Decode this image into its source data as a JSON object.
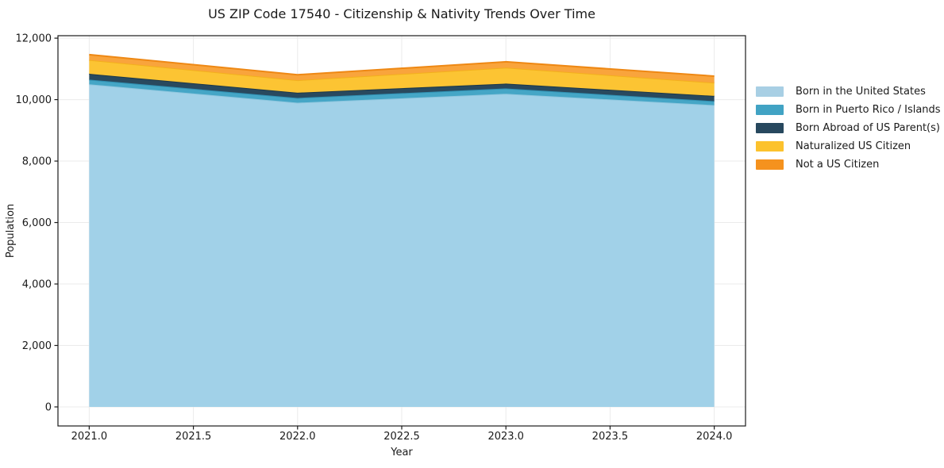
{
  "chart_data": {
    "type": "area",
    "stacked": true,
    "title": "US ZIP Code 17540 - Citizenship & Nativity Trends Over Time",
    "xlabel": "Year",
    "ylabel": "Population",
    "x": [
      2021,
      2022,
      2023,
      2024
    ],
    "series": [
      {
        "name": "Born in the United States",
        "values": [
          10500,
          9900,
          10190,
          9820
        ],
        "color": "#a1d1e8",
        "edge": "#8ec6de",
        "legend_color": "#a8cfe4"
      },
      {
        "name": "Born in Puerto Rico / Islands",
        "values": [
          150,
          155,
          175,
          130
        ],
        "color": "#45a6c6",
        "edge": "#3090b2",
        "legend_color": "#41a3c4"
      },
      {
        "name": "Born Abroad of US Parent(s)",
        "values": [
          190,
          170,
          155,
          170
        ],
        "color": "#29495e",
        "edge": "#1c3849",
        "legend_color": "#27485e"
      },
      {
        "name": "Naturalized US Citizen",
        "values": [
          450,
          405,
          520,
          430
        ],
        "color": "#fcc433",
        "edge": "#f3b01c",
        "legend_color": "#fcc22d"
      },
      {
        "name": "Not a US Citizen",
        "values": [
          175,
          180,
          190,
          215
        ],
        "color": "#f9a43c",
        "edge": "#ee8814",
        "legend_color": "#f5921e"
      }
    ],
    "totals": [
      11465,
      10810,
      11230,
      10765
    ],
    "xticks": [
      2021.0,
      2021.5,
      2022.0,
      2022.5,
      2023.0,
      2023.5,
      2024.0
    ],
    "xtick_labels": [
      "2021.0",
      "2021.5",
      "2022.0",
      "2022.5",
      "2023.0",
      "2023.5",
      "2024.0"
    ],
    "yticks": [
      0,
      2000,
      4000,
      6000,
      8000,
      10000,
      12000
    ],
    "ytick_labels": [
      "0",
      "2,000",
      "4,000",
      "6,000",
      "8,000",
      "10,000",
      "12,000"
    ],
    "xlim": [
      2020.85,
      2024.15
    ],
    "ylim": [
      -620,
      12080
    ],
    "grid": true,
    "grid_color": "#ebebeb",
    "spine_color": "#1a1a1a",
    "legend_position": "right"
  }
}
